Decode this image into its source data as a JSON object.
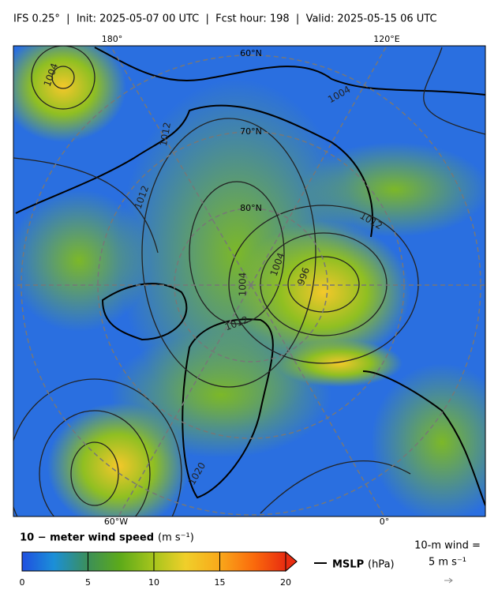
{
  "header": {
    "title": "IFS 0.25°  |  Init: 2025-05-07 00 UTC  |  Fcst hour: 198  |  Valid: 2025-05-15 06 UTC"
  },
  "map": {
    "lon_labels_top": [
      "180°",
      "120°E"
    ],
    "lon_labels_bottom": [
      "60°W",
      "0°"
    ],
    "lat_labels": [
      "60°N",
      "70°N",
      "80°N"
    ],
    "contour_labels": [
      "1004",
      "1012",
      "1012",
      "1004",
      "996",
      "1004",
      "1012",
      "1004",
      "1020",
      "1012"
    ]
  },
  "colorbar": {
    "label": "10 − meter wind speed",
    "unit": "(m s⁻¹)",
    "range": [
      0,
      20
    ],
    "ticks": [
      0,
      5,
      10,
      15,
      20
    ]
  },
  "legend": {
    "mslp_label": "MSLP",
    "mslp_unit": "(hPa)",
    "wind_label": "10-m wind =",
    "wind_value": "5 m s⁻¹"
  }
}
